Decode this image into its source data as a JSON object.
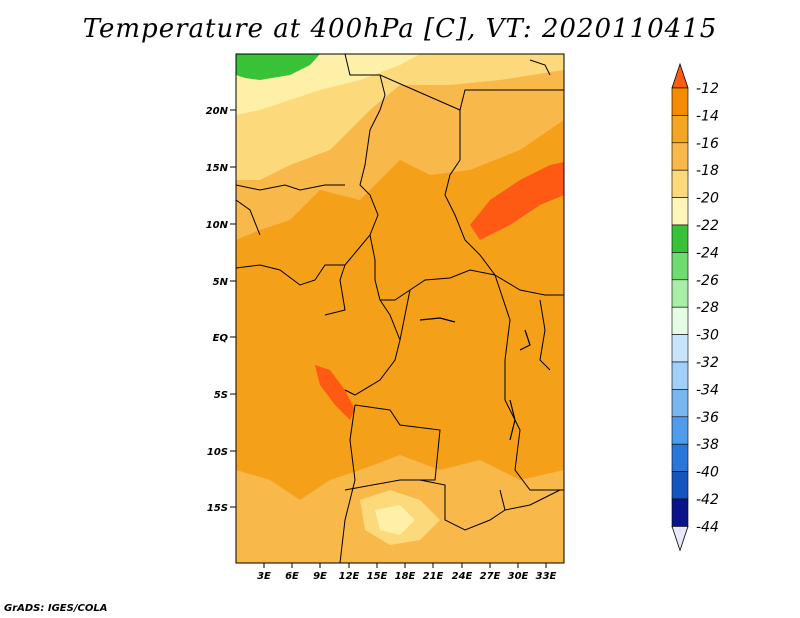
{
  "title": "Temperature at 400hPa [C], VT: 2020110415",
  "credit": "GrADS: IGES/COLA",
  "map": {
    "lat_ticks": [
      "20N",
      "15N",
      "10N",
      "5N",
      "EQ",
      "5S",
      "10S",
      "15S"
    ],
    "lon_ticks": [
      "3E",
      "6E",
      "9E",
      "12E",
      "15E",
      "18E",
      "21E",
      "24E",
      "27E",
      "30E",
      "33E"
    ]
  },
  "colorbar": {
    "labels": [
      "-12",
      "-14",
      "-16",
      "-18",
      "-20",
      "-22",
      "-24",
      "-26",
      "-28",
      "-30",
      "-32",
      "-34",
      "-36",
      "-38",
      "-40",
      "-42",
      "-44"
    ],
    "colors": [
      "#ff5a14",
      "#f58c00",
      "#f5a623",
      "#f8b84a",
      "#fcd97a",
      "#fff5b8",
      "#38c238",
      "#6edc6e",
      "#a8eea8",
      "#e4fbe4",
      "#c8e4fb",
      "#a0d0f8",
      "#78b6f0",
      "#509cec",
      "#2878dc",
      "#1455c0",
      "#0a148a",
      "#e8e8fb"
    ]
  },
  "regions": {
    "base": "#f5a019",
    "north_band": "#fcd97a",
    "north_yellow": "#fff0a8",
    "green_patch": "#38c238",
    "light_orange": "#f8b84a",
    "hot_streak": "#ff5a14"
  }
}
